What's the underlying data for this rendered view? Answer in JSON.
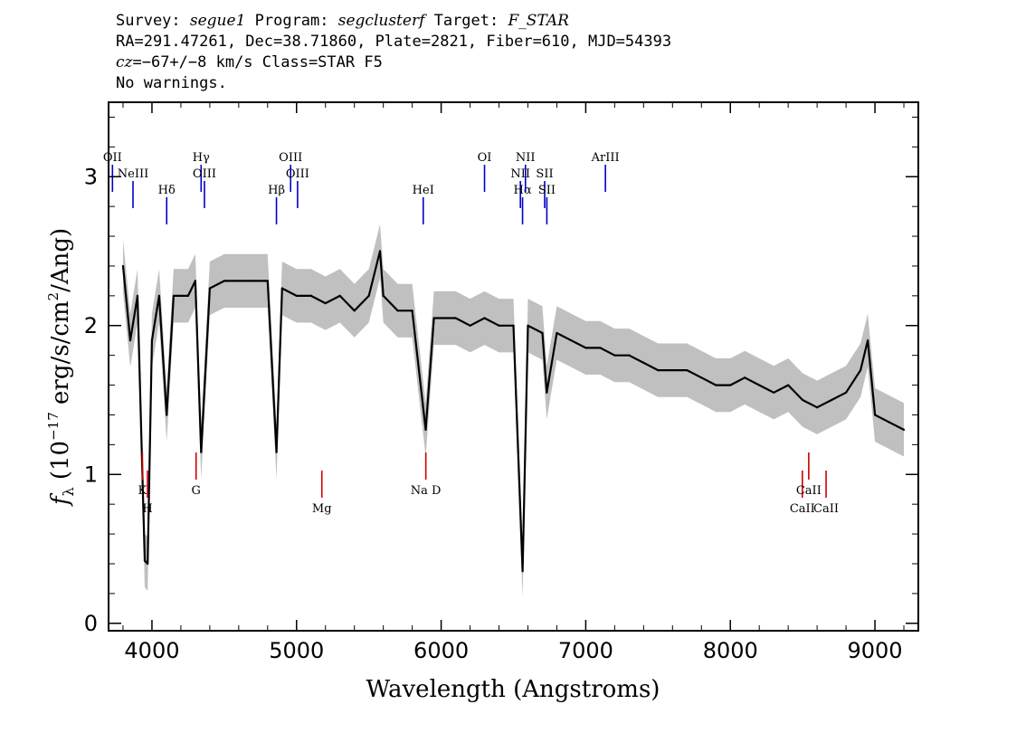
{
  "header": {
    "line1": {
      "survey_label": "Survey: ",
      "survey": "segue1",
      "program_label": " Program: ",
      "program": "segclusterf",
      "target_label": " Target: ",
      "target": "F_STAR"
    },
    "line2": "RA=291.47261, Dec=38.71860, Plate=2821, Fiber=610, MJD=54393",
    "line3": {
      "cz_label": "cz",
      "cz_value": "=−67+/−8 km/s Class=STAR F5"
    },
    "line4": "No warnings."
  },
  "chart_data": {
    "type": "line",
    "xlabel": "Wavelength (Angstroms)",
    "ylabel_parts": {
      "f": "f",
      "lambda": "λ",
      "open": " (10",
      "exp": "−17",
      "rest": " erg/s/cm",
      "exp2": "2",
      "close": "/Ang)"
    },
    "xlim": [
      3700,
      9300
    ],
    "ylim": [
      -0.05,
      3.5
    ],
    "xticks": [
      4000,
      5000,
      6000,
      7000,
      8000,
      9000
    ],
    "xtick_labels": [
      "4000",
      "5000",
      "6000",
      "7000",
      "8000",
      "9000"
    ],
    "yticks": [
      0,
      1,
      2,
      3
    ],
    "ytick_labels": [
      "0",
      "1",
      "2",
      "3"
    ],
    "colors": {
      "flux": "#000000",
      "error_band": "#c0c0c0",
      "emission": "#0000cc",
      "absorption": "#cc0000"
    },
    "series": [
      {
        "x": [
          3800,
          3850,
          3900,
          3950,
          3970,
          4000,
          4050,
          4102,
          4150,
          4200,
          4250,
          4300,
          4340,
          4400,
          4500,
          4600,
          4700,
          4800,
          4861,
          4900,
          5000,
          5100,
          5200,
          5300,
          5400,
          5500,
          5577,
          5600,
          5700,
          5800,
          5893,
          5950,
          6000,
          6100,
          6200,
          6300,
          6400,
          6500,
          6563,
          6600,
          6700,
          6730,
          6800,
          6900,
          7000,
          7100,
          7200,
          7300,
          7400,
          7500,
          7600,
          7700,
          7800,
          7900,
          8000,
          8100,
          8200,
          8300,
          8400,
          8500,
          8600,
          8700,
          8800,
          8900,
          8950,
          9000,
          9100,
          9200
        ],
        "flux": [
          2.4,
          1.9,
          2.2,
          0.42,
          0.4,
          1.9,
          2.2,
          1.4,
          2.2,
          2.2,
          2.2,
          2.3,
          1.15,
          2.25,
          2.3,
          2.3,
          2.3,
          2.3,
          1.15,
          2.25,
          2.2,
          2.2,
          2.15,
          2.2,
          2.1,
          2.2,
          2.5,
          2.2,
          2.1,
          2.1,
          1.3,
          2.05,
          2.05,
          2.05,
          2.0,
          2.05,
          2.0,
          2.0,
          0.35,
          2.0,
          1.95,
          1.55,
          1.95,
          1.9,
          1.85,
          1.85,
          1.8,
          1.8,
          1.75,
          1.7,
          1.7,
          1.7,
          1.65,
          1.6,
          1.6,
          1.65,
          1.6,
          1.55,
          1.6,
          1.5,
          1.45,
          1.5,
          1.55,
          1.7,
          1.9,
          1.4,
          1.35,
          1.3
        ]
      }
    ],
    "emission_lines": [
      {
        "label": "OII",
        "x": 3727
      },
      {
        "label": "NeIII",
        "x": 3869
      },
      {
        "label": "Hδ",
        "x": 4102
      },
      {
        "label": "Hγ",
        "x": 4340
      },
      {
        "label": "OIII",
        "x": 4363
      },
      {
        "label": "Hβ",
        "x": 4861
      },
      {
        "label": "OIII",
        "x": 4959
      },
      {
        "label": "OIII",
        "x": 5007
      },
      {
        "label": "HeI",
        "x": 5876
      },
      {
        "label": "OI",
        "x": 6300
      },
      {
        "label": "NII",
        "x": 6548
      },
      {
        "label": "Hα",
        "x": 6563
      },
      {
        "label": "NII",
        "x": 6583
      },
      {
        "label": "SII",
        "x": 6716
      },
      {
        "label": "SII",
        "x": 6731
      },
      {
        "label": "ArIII",
        "x": 7136
      }
    ],
    "absorption_lines": [
      {
        "label": "K",
        "x": 3934
      },
      {
        "label": "H",
        "x": 3969
      },
      {
        "label": "G",
        "x": 4305
      },
      {
        "label": "Mg",
        "x": 5175
      },
      {
        "label": "Na D",
        "x": 5894
      },
      {
        "label": "CaII",
        "x": 8498
      },
      {
        "label": "CaII",
        "x": 8542
      },
      {
        "label": "CaII",
        "x": 8662
      }
    ]
  }
}
